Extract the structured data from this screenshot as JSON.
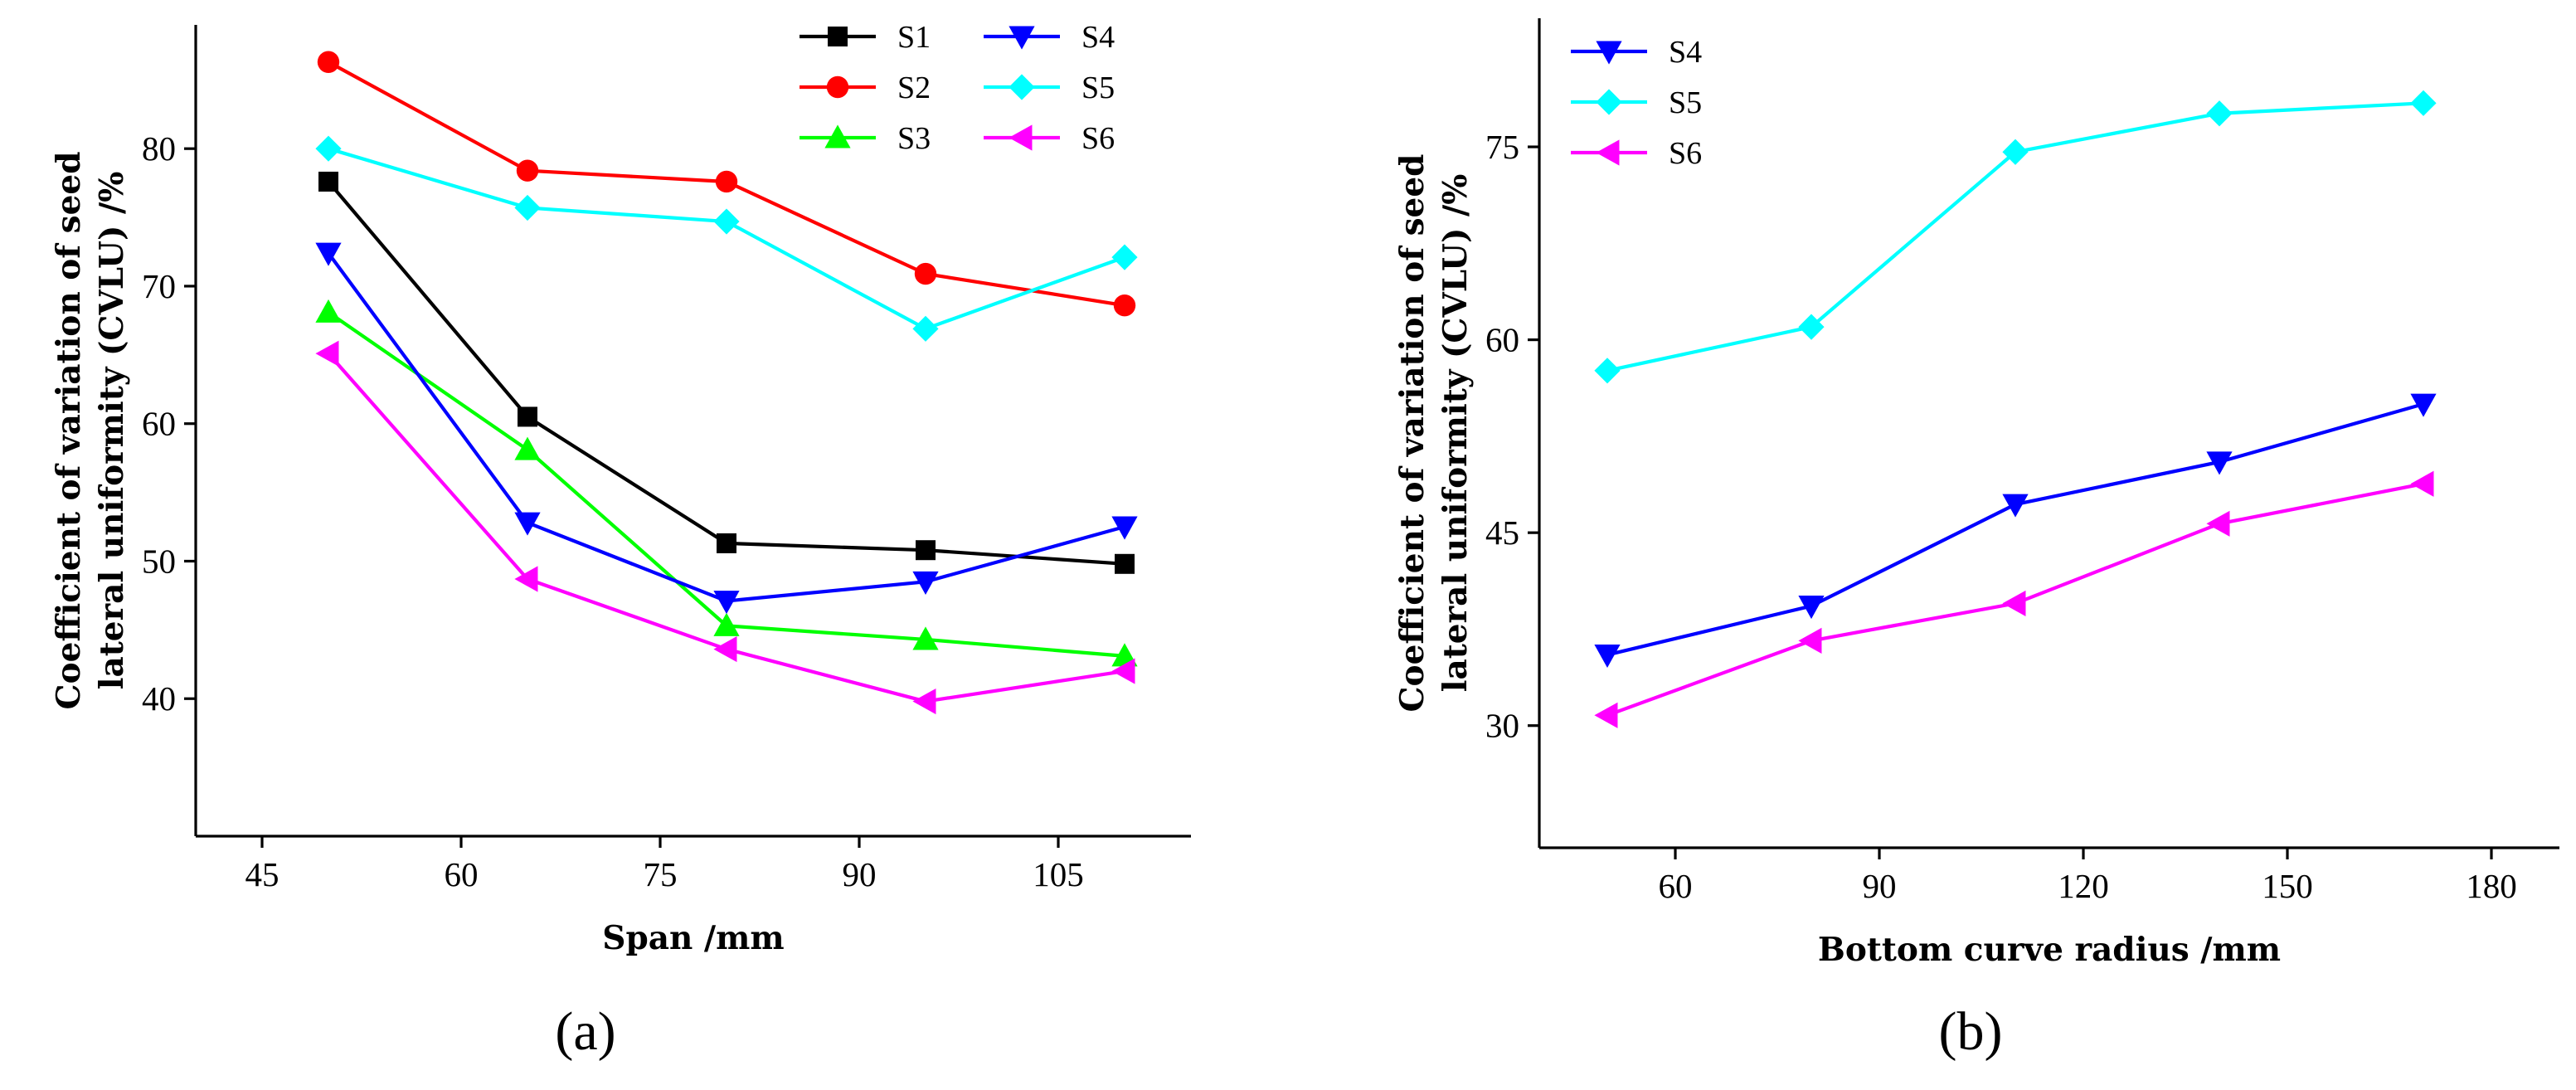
{
  "panels": [
    {
      "panel_label": "(a)"
    },
    {
      "panel_label": "(b)"
    }
  ],
  "chart_data": [
    {
      "type": "line",
      "title": "",
      "xlabel": "Span /mm",
      "ylabel_lines": [
        "Coefficient of variation of seed",
        "lateral uniformity (CVLU) /%"
      ],
      "xlim": [
        40,
        115
      ],
      "ylim": [
        30,
        89
      ],
      "xticks": [
        45,
        60,
        75,
        90,
        105
      ],
      "yticks": [
        40,
        50,
        60,
        70,
        80
      ],
      "x": [
        50,
        65,
        80,
        95,
        110
      ],
      "legend_position": "top-right",
      "legend_columns": 2,
      "series": [
        {
          "name": "S1",
          "color": "#000000",
          "marker": "square",
          "values": [
            77.6,
            60.5,
            51.3,
            50.8,
            49.8
          ]
        },
        {
          "name": "S2",
          "color": "#ff0000",
          "marker": "circle",
          "values": [
            86.3,
            78.4,
            77.6,
            70.9,
            68.6
          ]
        },
        {
          "name": "S3",
          "color": "#00ff00",
          "marker": "triangle-up",
          "values": [
            68.1,
            58.1,
            45.3,
            44.3,
            43.1
          ]
        },
        {
          "name": "S4",
          "color": "#0000ff",
          "marker": "triangle-down",
          "values": [
            72.4,
            52.8,
            47.1,
            48.5,
            52.5
          ]
        },
        {
          "name": "S5",
          "color": "#00ffff",
          "marker": "diamond",
          "values": [
            80.0,
            75.7,
            74.7,
            66.9,
            72.1
          ]
        },
        {
          "name": "S6",
          "color": "#ff00ff",
          "marker": "triangle-left",
          "values": [
            65.1,
            48.7,
            43.6,
            39.8,
            42.0
          ]
        }
      ]
    },
    {
      "type": "line",
      "title": "",
      "xlabel": "Bottom curve radius /mm",
      "ylabel_lines": [
        "Coefficient of variation of seed",
        "lateral uniformity (CVLU) /%"
      ],
      "xlim": [
        40,
        190
      ],
      "ylim": [
        20.5,
        85
      ],
      "xticks": [
        60,
        90,
        120,
        150,
        180
      ],
      "yticks": [
        30,
        45,
        60,
        75
      ],
      "x": [
        50,
        80,
        110,
        140,
        170
      ],
      "legend_position": "top-left",
      "legend_columns": 1,
      "series": [
        {
          "name": "S4",
          "color": "#0000ff",
          "marker": "triangle-down",
          "values": [
            35.5,
            39.3,
            47.2,
            50.5,
            55.0
          ]
        },
        {
          "name": "S5",
          "color": "#00ffff",
          "marker": "diamond",
          "values": [
            57.6,
            61.0,
            74.6,
            77.6,
            78.4
          ]
        },
        {
          "name": "S6",
          "color": "#ff00ff",
          "marker": "triangle-left",
          "values": [
            30.8,
            36.6,
            39.5,
            45.7,
            48.8
          ]
        }
      ]
    }
  ]
}
